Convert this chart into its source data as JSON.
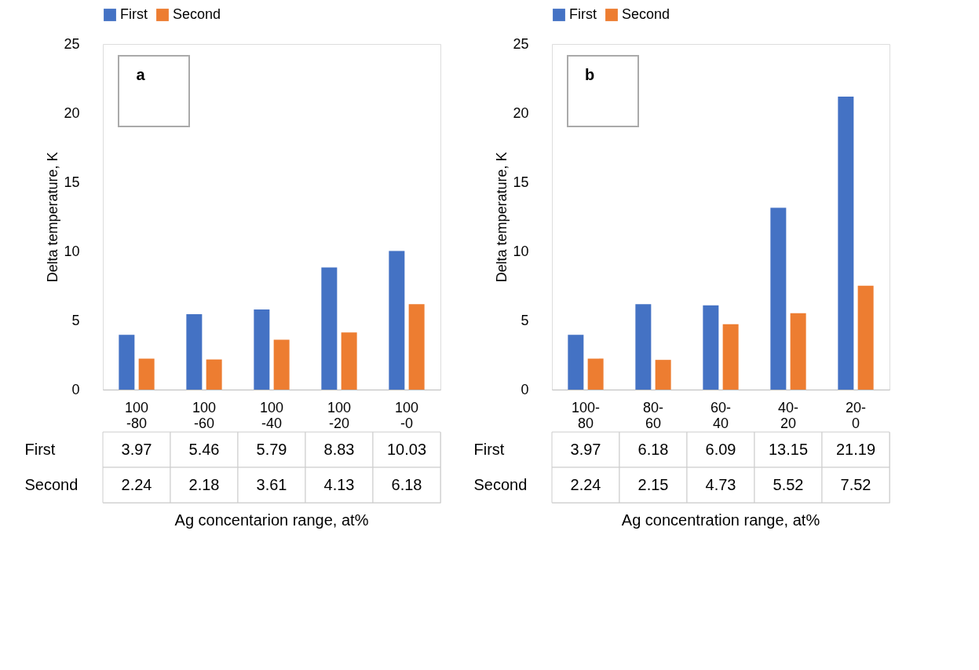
{
  "chart_data": [
    {
      "type": "bar",
      "categories": [
        "100-80",
        "100-60",
        "100-40",
        "100-20",
        "100-0"
      ],
      "series": [
        {
          "name": "First",
          "color": "#4472c4",
          "values": [
            3.97,
            5.46,
            5.79,
            8.83,
            10.03
          ]
        },
        {
          "name": "Second",
          "color": "#ed7d31",
          "values": [
            2.24,
            2.18,
            3.61,
            4.13,
            6.18
          ]
        }
      ],
      "ylabel": "Delta temperature, K",
      "xlabel": "Ag concentarion range, at%",
      "ylim": [
        0,
        25
      ],
      "yticks": [
        0,
        5,
        10,
        15,
        20,
        25
      ],
      "legend": "top",
      "data_labels": true,
      "annotations": [
        "a"
      ]
    },
    {
      "type": "bar",
      "categories": [
        "100-80",
        "80-60",
        "60-40",
        "40-20",
        "20-0"
      ],
      "series": [
        {
          "name": "First",
          "color": "#4472c4",
          "values": [
            3.97,
            6.18,
            6.09,
            13.15,
            21.19
          ]
        },
        {
          "name": "Second",
          "color": "#ed7d31",
          "values": [
            2.24,
            2.15,
            4.73,
            5.52,
            7.52
          ]
        }
      ],
      "ylabel": "Delta temperature, K",
      "xlabel": "Ag concentration range, at%",
      "ylim": [
        0,
        25
      ],
      "yticks": [
        0,
        5,
        10,
        15,
        20,
        25
      ],
      "legend": "top",
      "data_labels": true,
      "annotations": [
        "b"
      ]
    }
  ]
}
